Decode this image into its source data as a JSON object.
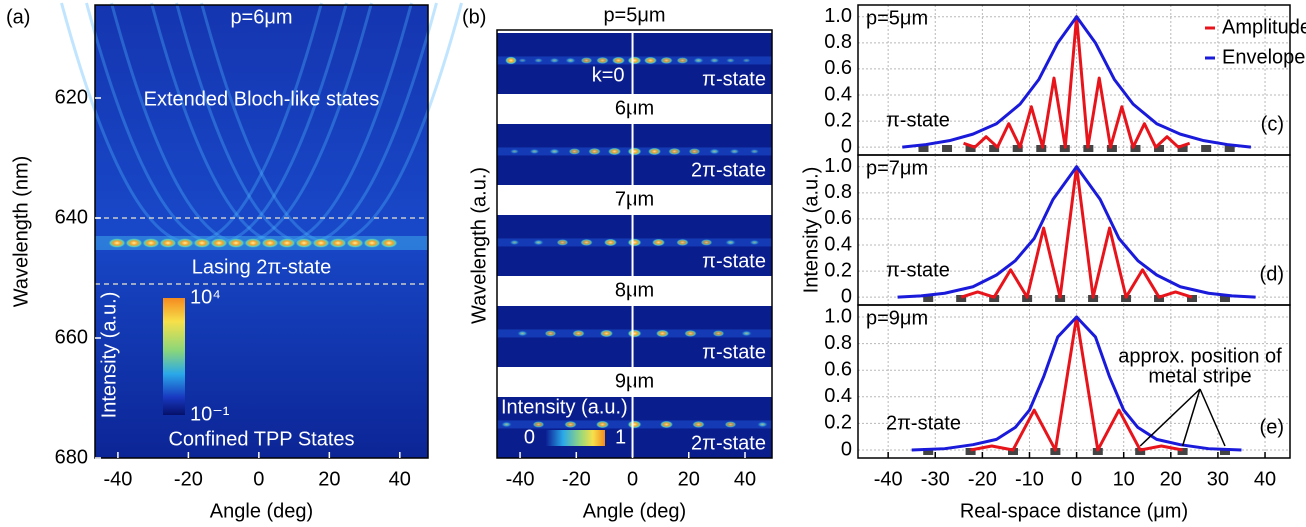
{
  "chart_data": [
    {
      "type": "heatmap",
      "panel_label": "(a)",
      "title": "p=6μm",
      "xlabel": "Angle (deg)",
      "ylabel": "Wavelength (nm)",
      "xlim": [
        -46.5,
        48
      ],
      "ylim": [
        604.5,
        680
      ],
      "xticks": [
        -40,
        -20,
        0,
        20,
        40
      ],
      "yticks": [
        620,
        640,
        660,
        680
      ],
      "hlines": [
        640,
        651
      ],
      "annotations": [
        "Extended Bloch-like states",
        "Lasing 2π-state",
        "Confined TPP States"
      ],
      "colorbar": {
        "label": "Intensity (a.u.)",
        "log": true,
        "ticks": [
          {
            "value": 10000,
            "label": "10⁴"
          },
          {
            "value": 0.1,
            "label": "10⁻¹"
          }
        ]
      }
    },
    {
      "type": "image_stack",
      "panel_label": "(b)",
      "title": "p=5μm",
      "xlabel": "Angle (deg)",
      "ylabel": "Wavelength (a.u.)",
      "xlim": [
        -48.2,
        49.6
      ],
      "xticks": [
        -40,
        -20,
        0,
        20,
        40
      ],
      "vline": 0,
      "annotation": "k=0",
      "strips": [
        {
          "state": "π-state"
        },
        {
          "period": "6μm",
          "state": "2π-state"
        },
        {
          "period": "7μm",
          "state": "π-state"
        },
        {
          "period": "8μm",
          "state": "π-state"
        },
        {
          "period": "9μm",
          "state": "2π-state"
        }
      ],
      "colorbar": {
        "label": "Intensity (a.u.)",
        "ticks": [
          0,
          1
        ]
      }
    },
    {
      "type": "line",
      "panel_label": "(c)",
      "title": "p=5μm",
      "state": "π-state",
      "xlim": [
        -46.4,
        45.3
      ],
      "ylim": [
        -0.06,
        1.09
      ],
      "yticks": [
        0,
        0.2,
        0.4,
        0.6,
        0.8,
        {
          "value": 1,
          "label": "1.0"
        }
      ],
      "grid": true,
      "series": [
        {
          "name": "Amplitude",
          "color": "#e8141b",
          "x": [
            -24,
            -21.6,
            -19.2,
            -16.8,
            -14.4,
            -12,
            -9.6,
            -7.2,
            -4.8,
            -2.4,
            0,
            2.4,
            4.8,
            7.2,
            9.6,
            12,
            14.4,
            16.8,
            19.2,
            21.6,
            24
          ],
          "values": [
            0.03,
            0,
            0.08,
            0,
            0.18,
            0,
            0.31,
            0,
            0.53,
            0,
            1,
            0,
            0.53,
            0,
            0.31,
            0,
            0.18,
            0,
            0.08,
            0,
            0.03
          ]
        },
        {
          "name": "Envelope",
          "color": "#1a1adb",
          "x": [
            -37,
            -32,
            -27,
            -22,
            -17,
            -12,
            -8,
            -4,
            0,
            4,
            8,
            12,
            17,
            22,
            27,
            32,
            37
          ],
          "values": [
            0,
            0.02,
            0.05,
            0.1,
            0.18,
            0.33,
            0.52,
            0.8,
            1,
            0.8,
            0.52,
            0.33,
            0.18,
            0.1,
            0.05,
            0.02,
            0
          ]
        }
      ],
      "stripes": [
        -32.5,
        -27.5,
        -22.5,
        -17.5,
        -12.5,
        -7.5,
        -2.5,
        2.5,
        7.5,
        12.5,
        17.5,
        22.5,
        27.5,
        32.5
      ]
    },
    {
      "type": "line",
      "panel_label": "(d)",
      "title": "p=7μm",
      "state": "π-state",
      "ylabel": "Intensity (a.u.)",
      "xlim": [
        -46.4,
        45.3
      ],
      "ylim": [
        -0.06,
        1.09
      ],
      "yticks": [
        0,
        0.2,
        0.4,
        0.6,
        0.8,
        {
          "value": 1,
          "label": "1.0"
        }
      ],
      "grid": true,
      "series": [
        {
          "color": "#e8141b",
          "x": [
            -24.5,
            -21,
            -17.5,
            -14,
            -10.5,
            -7,
            -3.5,
            0,
            3.5,
            7,
            10.5,
            14,
            17.5,
            21,
            24.5
          ],
          "values": [
            0,
            0.04,
            0,
            0.21,
            0,
            0.53,
            0,
            1,
            0,
            0.53,
            0,
            0.21,
            0,
            0.04,
            0
          ]
        },
        {
          "color": "#1a1adb",
          "x": [
            -38,
            -33,
            -28,
            -22,
            -17,
            -13,
            -9,
            -5,
            0,
            5,
            9,
            13,
            17,
            22,
            28,
            33,
            38
          ],
          "values": [
            0,
            0.01,
            0.03,
            0.08,
            0.17,
            0.28,
            0.45,
            0.75,
            1,
            0.75,
            0.45,
            0.28,
            0.17,
            0.08,
            0.03,
            0.01,
            0
          ]
        }
      ],
      "stripes": [
        -31.5,
        -24.5,
        -17.5,
        -10.5,
        -3.5,
        3.5,
        10.5,
        17.5,
        24.5,
        31.5
      ]
    },
    {
      "type": "line",
      "panel_label": "(e)",
      "title": "p=9μm",
      "state": "2π-state",
      "xlabel": "Real-space distance (μm)",
      "xlim": [
        -46.4,
        45.3
      ],
      "ylim": [
        -0.06,
        1.09
      ],
      "xticks": [
        -40,
        -30,
        -20,
        -10,
        0,
        10,
        20,
        30,
        40
      ],
      "yticks": [
        0,
        0.2,
        0.4,
        0.6,
        0.8,
        {
          "value": 1,
          "label": "1.0"
        }
      ],
      "grid": true,
      "annotation": [
        "approx. position of",
        "metal stripe"
      ],
      "series": [
        {
          "color": "#e8141b",
          "x": [
            -22.5,
            -18,
            -13.5,
            -9,
            -4.5,
            0,
            4.5,
            9,
            13.5,
            18,
            22.5
          ],
          "values": [
            0,
            0.03,
            0,
            0.3,
            0,
            1,
            0,
            0.3,
            0,
            0.03,
            0
          ]
        },
        {
          "color": "#1a1adb",
          "x": [
            -35,
            -28,
            -22,
            -17,
            -13,
            -10,
            -7,
            -4,
            0,
            4,
            7,
            10,
            13,
            17,
            22,
            28,
            35
          ],
          "values": [
            0,
            0.01,
            0.04,
            0.08,
            0.17,
            0.3,
            0.55,
            0.85,
            1,
            0.85,
            0.55,
            0.3,
            0.17,
            0.08,
            0.04,
            0.01,
            0
          ]
        }
      ],
      "stripes": [
        -31.5,
        -22.5,
        -13.5,
        -4.5,
        4.5,
        13.5,
        22.5,
        31.5
      ]
    }
  ]
}
